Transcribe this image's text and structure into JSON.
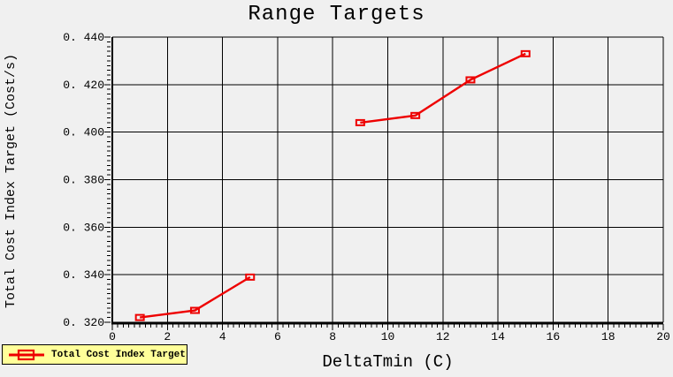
{
  "window": {
    "background": "#f0f0f0"
  },
  "chart_data": {
    "type": "line",
    "title": "Range Targets",
    "xlabel": "DeltaTmin (C)",
    "ylabel": "Total Cost Index Target (Cost/s)",
    "xlim": [
      0,
      20
    ],
    "ylim": [
      0.32,
      0.44
    ],
    "xticks": [
      0,
      2,
      4,
      6,
      8,
      10,
      12,
      14,
      16,
      18,
      20
    ],
    "yticks": [
      0.32,
      0.34,
      0.36,
      0.38,
      0.4,
      0.42,
      0.44
    ],
    "xtick_labels": [
      "0",
      "2",
      "4",
      "6",
      "8",
      "10",
      "12",
      "14",
      "16",
      "18",
      "20"
    ],
    "ytick_labels": [
      "0. 320",
      "0. 340",
      "0. 360",
      "0. 380",
      "0. 400",
      "0. 420",
      "0. 440"
    ],
    "x_minor_step": 0.2,
    "y_minor_step": 0.002,
    "grid": true,
    "grid_color": "#000000",
    "plot_background": "#f0f0f0",
    "legend_position": "bottom-left-outside",
    "series": [
      {
        "name": "Total Cost Index Target",
        "color": "#ee0000",
        "marker": "open-square",
        "segments": [
          [
            [
              1,
              0.322
            ],
            [
              3,
              0.325
            ],
            [
              5,
              0.339
            ]
          ],
          [
            [
              9,
              0.404
            ],
            [
              11,
              0.407
            ],
            [
              13,
              0.422
            ],
            [
              15,
              0.433
            ]
          ]
        ]
      }
    ]
  },
  "legend": {
    "label": "Total Cost Index Target",
    "background": "#ffff99",
    "border_color": "#000000"
  }
}
